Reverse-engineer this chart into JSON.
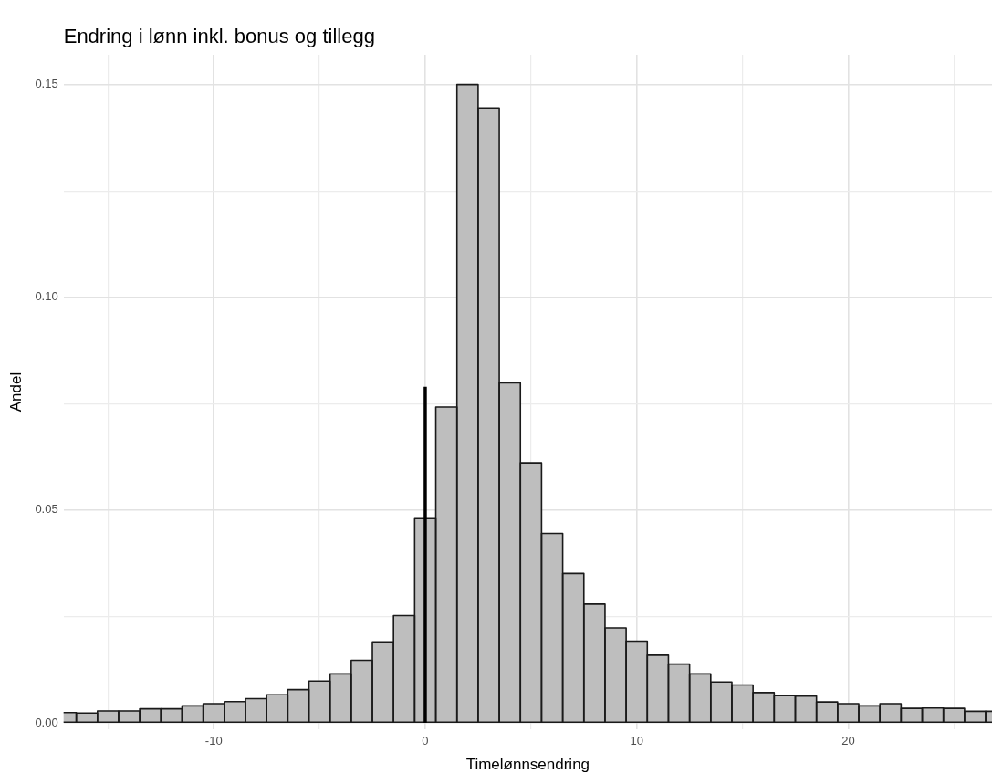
{
  "chart_data": {
    "type": "histogram",
    "title": "Endring i lønn inkl. bonus og tillegg",
    "xlabel": "Timelønnsendring",
    "ylabel": "Andel",
    "bins": [
      -17.5,
      -16.5,
      -15.5,
      -14.5,
      -13.5,
      -12.5,
      -11.5,
      -10.5,
      -9.5,
      -8.5,
      -7.5,
      -6.5,
      -5.5,
      -4.5,
      -3.5,
      -2.5,
      -1.5,
      -0.5,
      0.5,
      1.5,
      2.5,
      3.5,
      4.5,
      5.5,
      6.5,
      7.5,
      8.5,
      9.5,
      10.5,
      11.5,
      12.5,
      13.5,
      14.5,
      15.5,
      16.5,
      17.5,
      18.5,
      19.5,
      20.5,
      21.5,
      22.5,
      23.5,
      24.5,
      25.5,
      26.5,
      27.5
    ],
    "values": [
      0.0024,
      0.0023,
      0.0028,
      0.0028,
      0.0033,
      0.0033,
      0.004,
      0.0045,
      0.005,
      0.0057,
      0.0066,
      0.0078,
      0.0098,
      0.0115,
      0.0147,
      0.019,
      0.0252,
      0.048,
      0.0742,
      0.15,
      0.1445,
      0.0799,
      0.0611,
      0.0445,
      0.0351,
      0.0279,
      0.0223,
      0.0192,
      0.0159,
      0.0138,
      0.0115,
      0.0096,
      0.0089,
      0.0071,
      0.0064,
      0.0063,
      0.0049,
      0.0045,
      0.004,
      0.0045,
      0.0034,
      0.0035,
      0.0034,
      0.0027,
      0.0027
    ],
    "color": "#bebebe",
    "series": [
      {
        "type": "line",
        "x": [
          0,
          0
        ],
        "values": [
          0,
          0.079
        ],
        "color": "#000000"
      }
    ],
    "xlim": [
      -17.1,
      26.8
    ],
    "xticks": [
      {
        "value": -15,
        "label": null
      },
      -10,
      {
        "value": -5,
        "label": null
      },
      0,
      {
        "value": 5,
        "label": null
      },
      10,
      {
        "value": 15,
        "label": null
      },
      20,
      {
        "value": 25,
        "label": null
      }
    ],
    "ylim": [
      -0.0015,
      0.157
    ],
    "yticks": [
      {
        "value": 0,
        "label": "0.00"
      },
      {
        "value": 0.025,
        "label": null
      },
      {
        "value": 0.05,
        "label": "0.05"
      },
      {
        "value": 0.075,
        "label": null
      },
      {
        "value": 0.1,
        "label": "0.10"
      },
      {
        "value": 0.125,
        "label": null
      },
      {
        "value": 0.15,
        "label": "0.15"
      }
    ],
    "grid": true,
    "legend": false
  }
}
